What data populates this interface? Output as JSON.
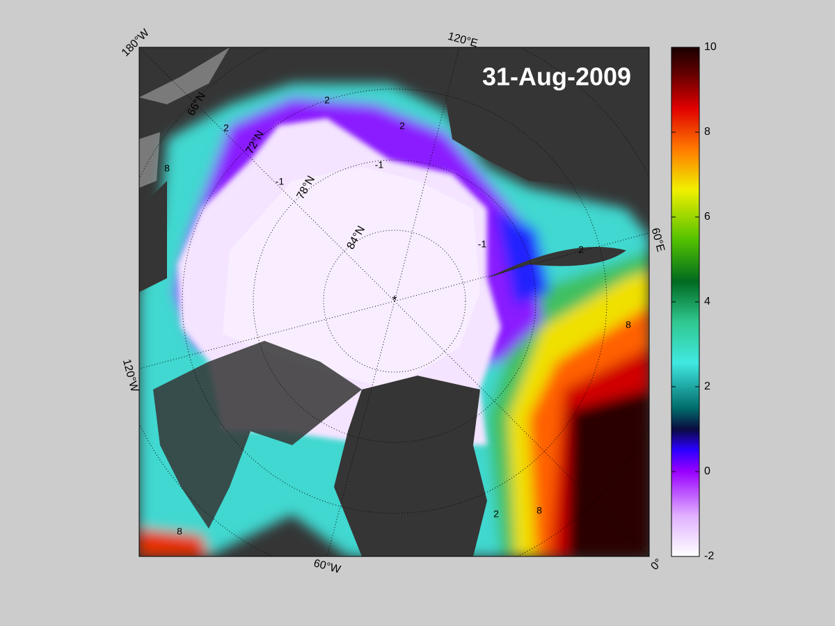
{
  "map": {
    "title": "31-Aug-2009",
    "lon_labels": [
      "180°W",
      "120°E",
      "60°E",
      "0°",
      "60°W",
      "120°W"
    ],
    "lat_labels": [
      "66°N",
      "72°N",
      "78°N",
      "84°N"
    ],
    "contour_labels": [
      2,
      2,
      2,
      2,
      2,
      -1,
      -1,
      -1,
      8,
      8,
      8,
      8
    ],
    "colorbar": {
      "lim": [
        -2,
        10
      ],
      "ticks": [
        -2,
        0,
        2,
        4,
        6,
        8,
        10
      ]
    }
  }
}
